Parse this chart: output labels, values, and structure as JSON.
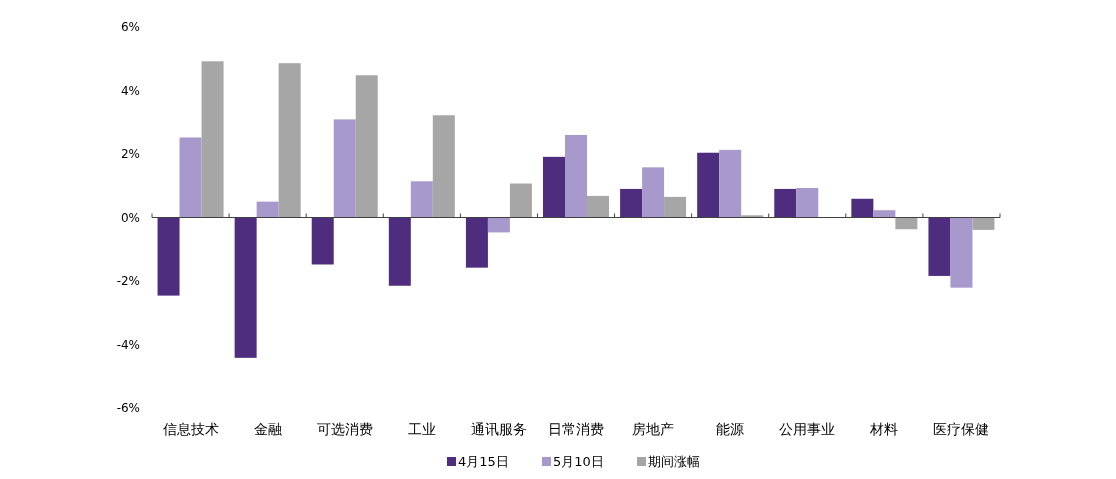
{
  "chart_data": {
    "type": "bar",
    "categories": [
      "信息技术",
      "金融",
      "可选消费",
      "工业",
      "通讯服务",
      "日常消费",
      "房地产",
      "能源",
      "公用事业",
      "材料",
      "医疗保健"
    ],
    "series": [
      {
        "name": "4月15日",
        "color": "#4e2d7f",
        "values": [
          -2.46,
          -4.42,
          -1.48,
          -2.15,
          -1.58,
          1.91,
          0.9,
          2.04,
          0.9,
          0.59,
          -1.84
        ]
      },
      {
        "name": "5月10日",
        "color": "#a899cc",
        "values": [
          2.52,
          0.5,
          3.09,
          1.14,
          -0.47,
          2.6,
          1.58,
          2.13,
          0.93,
          0.23,
          -2.21
        ]
      },
      {
        "name": "期间涨幅",
        "color": "#a6a6a6",
        "values": [
          4.92,
          4.86,
          4.48,
          3.22,
          1.07,
          0.68,
          0.65,
          0.07,
          0,
          -0.37,
          -0.39
        ]
      }
    ],
    "ylim": [
      -6,
      6
    ],
    "yticks": [
      {
        "value": -6,
        "label": "-6%"
      },
      {
        "value": -4,
        "label": "-4%"
      },
      {
        "value": -2,
        "label": "-2%"
      },
      {
        "value": 0,
        "label": "0%"
      },
      {
        "value": 2,
        "label": "2%"
      },
      {
        "value": 4,
        "label": "4%"
      },
      {
        "value": 6,
        "label": "6%"
      }
    ],
    "legend": "bottom"
  }
}
